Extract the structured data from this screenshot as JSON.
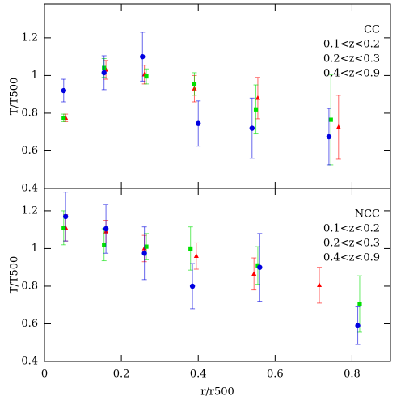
{
  "chart_data": [
    {
      "type": "scatter",
      "title": "CC",
      "ylabel": "T/T500",
      "xlim": [
        0,
        0.9
      ],
      "ylim": [
        0.4,
        1.38
      ],
      "xticks": [
        0,
        0.2,
        0.4,
        0.6,
        0.8
      ],
      "yticks": [
        0.4,
        0.6,
        0.8,
        1,
        1.2
      ],
      "series": [
        {
          "name": "0.1<z<0.2",
          "color": "#ff0000",
          "marker": "triangle",
          "x": [
            0.055,
            0.16,
            0.26,
            0.39,
            0.555,
            0.765
          ],
          "values": [
            0.775,
            1.03,
            1.005,
            0.93,
            0.88,
            0.725
          ],
          "errors": [
            0.02,
            0.05,
            0.05,
            0.07,
            0.11,
            0.17
          ]
        },
        {
          "name": "0.2<z<0.3",
          "color": "#00e000",
          "marker": "square",
          "x": [
            0.05,
            0.155,
            0.265,
            0.39,
            0.55,
            0.745
          ],
          "values": [
            0.775,
            1.04,
            0.995,
            0.955,
            0.82,
            0.765
          ],
          "errors": [
            0.02,
            0.05,
            0.04,
            0.06,
            0.13,
            0.24
          ]
        },
        {
          "name": "0.4<z<0.9",
          "color": "#0000e0",
          "marker": "circle",
          "x": [
            0.05,
            0.155,
            0.255,
            0.4,
            0.54,
            0.74
          ],
          "values": [
            0.92,
            1.015,
            1.1,
            0.745,
            0.72,
            0.675
          ],
          "errors": [
            0.06,
            0.09,
            0.13,
            0.12,
            0.16,
            0.15
          ]
        }
      ]
    },
    {
      "type": "scatter",
      "title": "NCC",
      "ylabel": "T/T500",
      "xlabel": "r/r500",
      "xlim": [
        0,
        0.9
      ],
      "ylim": [
        0.4,
        1.32
      ],
      "xticks": [
        0,
        0.2,
        0.4,
        0.6,
        0.8
      ],
      "yticks": [
        0.4,
        0.6,
        0.8,
        1,
        1.2
      ],
      "series": [
        {
          "name": "0.1<z<0.2",
          "color": "#ff0000",
          "marker": "triangle",
          "x": [
            0.055,
            0.16,
            0.26,
            0.395,
            0.545,
            0.715
          ],
          "values": [
            1.11,
            1.09,
            1.0,
            0.96,
            0.865,
            0.805
          ],
          "errors": [
            0.07,
            0.06,
            0.07,
            0.07,
            0.085,
            0.095
          ]
        },
        {
          "name": "0.2<z<0.3",
          "color": "#00e000",
          "marker": "square",
          "x": [
            0.05,
            0.155,
            0.265,
            0.38,
            0.555,
            0.82
          ],
          "values": [
            1.11,
            1.02,
            1.01,
            1.0,
            0.91,
            0.705
          ],
          "errors": [
            0.09,
            0.085,
            0.07,
            0.115,
            0.1,
            0.15
          ]
        },
        {
          "name": "0.4<z<0.9",
          "color": "#0000e0",
          "marker": "circle",
          "x": [
            0.055,
            0.16,
            0.26,
            0.385,
            0.56,
            0.815
          ],
          "values": [
            1.17,
            1.105,
            0.975,
            0.8,
            0.9,
            0.59
          ],
          "errors": [
            0.13,
            0.13,
            0.14,
            0.12,
            0.18,
            0.1
          ]
        }
      ]
    }
  ]
}
